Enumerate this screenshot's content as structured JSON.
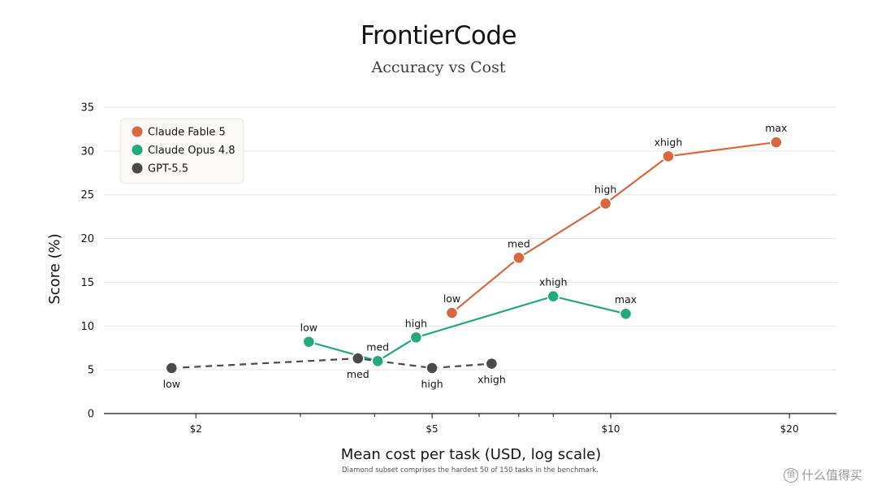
{
  "chart_data": {
    "type": "line",
    "title": "FrontierCode",
    "subtitle": "Accuracy vs Cost",
    "xlabel": "Mean cost per task (USD, log scale)",
    "ylabel": "Score (%)",
    "x_scale": "log",
    "xlim": [
      1.4,
      24
    ],
    "ylim": [
      0,
      35
    ],
    "yticks": [
      0,
      5,
      10,
      15,
      20,
      25,
      30,
      35
    ],
    "xticks_major": [
      {
        "value": 2,
        "label": "$2"
      },
      {
        "value": 5,
        "label": "$5"
      },
      {
        "value": 10,
        "label": "$10"
      },
      {
        "value": 20,
        "label": "$20"
      }
    ],
    "xticks_minor": [
      3,
      4,
      6,
      7,
      8
    ],
    "grid": "horizontal",
    "legend_position": "top-left",
    "series": [
      {
        "name": "Claude Fable 5",
        "color": "#d9683f",
        "dashed": false,
        "points": [
          {
            "x": 5.4,
            "y": 11.5,
            "label": "low",
            "label_pos": "above"
          },
          {
            "x": 7.0,
            "y": 17.8,
            "label": "med",
            "label_pos": "above"
          },
          {
            "x": 9.8,
            "y": 24.0,
            "label": "high",
            "label_pos": "above"
          },
          {
            "x": 12.5,
            "y": 29.4,
            "label": "xhigh",
            "label_pos": "above"
          },
          {
            "x": 19.0,
            "y": 31.0,
            "label": "max",
            "label_pos": "above"
          }
        ]
      },
      {
        "name": "Claude Opus 4.8",
        "color": "#22a97c",
        "dashed": false,
        "points": [
          {
            "x": 3.1,
            "y": 8.2,
            "label": "low",
            "label_pos": "above"
          },
          {
            "x": 4.05,
            "y": 6.0,
            "label": "med",
            "label_pos": "above"
          },
          {
            "x": 4.7,
            "y": 8.7,
            "label": "high",
            "label_pos": "above"
          },
          {
            "x": 8.0,
            "y": 13.4,
            "label": "xhigh",
            "label_pos": "above"
          },
          {
            "x": 10.6,
            "y": 11.4,
            "label": "max",
            "label_pos": "above"
          }
        ]
      },
      {
        "name": "GPT-5.5",
        "color": "#4a4a48",
        "dashed": true,
        "points": [
          {
            "x": 1.82,
            "y": 5.2,
            "label": "low",
            "label_pos": "below"
          },
          {
            "x": 3.75,
            "y": 6.3,
            "label": "med",
            "label_pos": "below"
          },
          {
            "x": 5.0,
            "y": 5.2,
            "label": "high",
            "label_pos": "below"
          },
          {
            "x": 6.3,
            "y": 5.7,
            "label": "xhigh",
            "label_pos": "below"
          }
        ]
      }
    ],
    "footnote": "Diamond subset comprises the hardest 50 of 150 tasks in the benchmark."
  },
  "watermark": {
    "icon": "value-circle-icon",
    "icon_glyph": "值",
    "text": "什么值得买"
  }
}
